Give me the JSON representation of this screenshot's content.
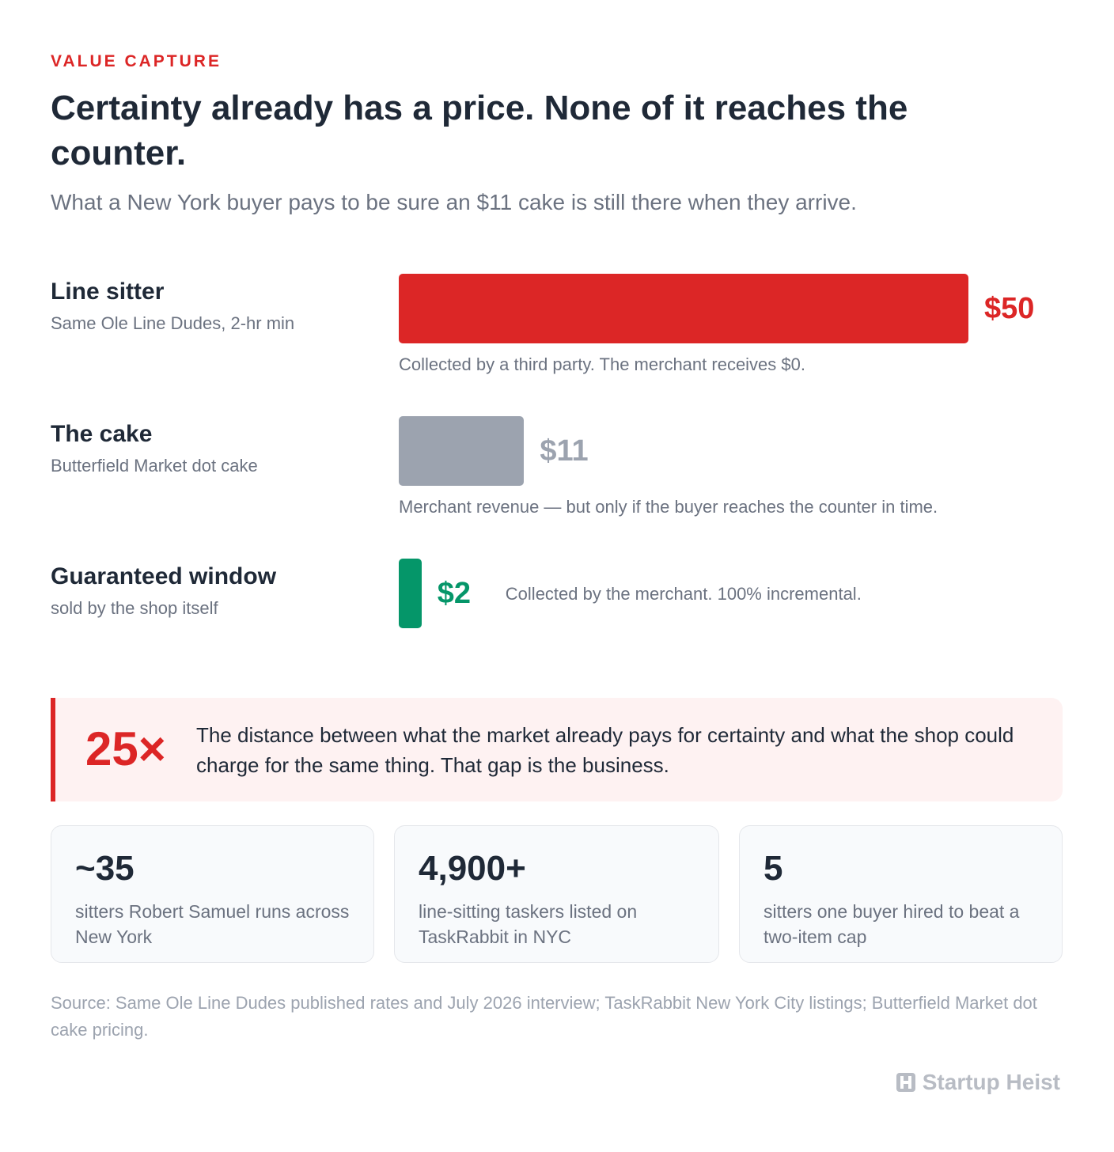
{
  "chart_data": {
    "type": "bar",
    "eyebrow": "VALUE CAPTURE",
    "title": "Certainty already has a price. None of it reaches the counter.",
    "subtitle": "What a New York buyer pays to be sure an $11 cake is still there when they arrive.",
    "categories": [
      "Line sitter",
      "The cake",
      "Guaranteed window"
    ],
    "category_subtitles": [
      "Same Ole Line Dudes, 2-hr min",
      "Butterfield Market dot cake",
      "sold by the shop itself"
    ],
    "values": [
      50,
      11,
      2
    ],
    "value_labels": [
      "$50",
      "$11",
      "$2"
    ],
    "colors": [
      "#dc2626",
      "#9ca3af",
      "#059669"
    ],
    "notes": [
      "Collected by a third party. The merchant receives $0.",
      "Merchant revenue — but only if the buyer reaches the counter in time.",
      "Collected by the merchant. 100% incremental."
    ]
  },
  "callout": {
    "value": "25×",
    "text": "The distance between what the market already pays for certainty and what the shop could charge for the same thing. That gap is the business."
  },
  "stats": [
    {
      "value": "~35",
      "label": "sitters Robert Samuel runs across New York"
    },
    {
      "value": "4,900+",
      "label": "line-sitting taskers listed on TaskRabbit in NYC"
    },
    {
      "value": "5",
      "label": "sitters one buyer hired to beat a two-item cap"
    }
  ],
  "source": "Source: Same Ole Line Dudes published rates and July 2026 interview; TaskRabbit New York City listings; Butterfield Market dot cake pricing.",
  "brand": "Startup Heist"
}
